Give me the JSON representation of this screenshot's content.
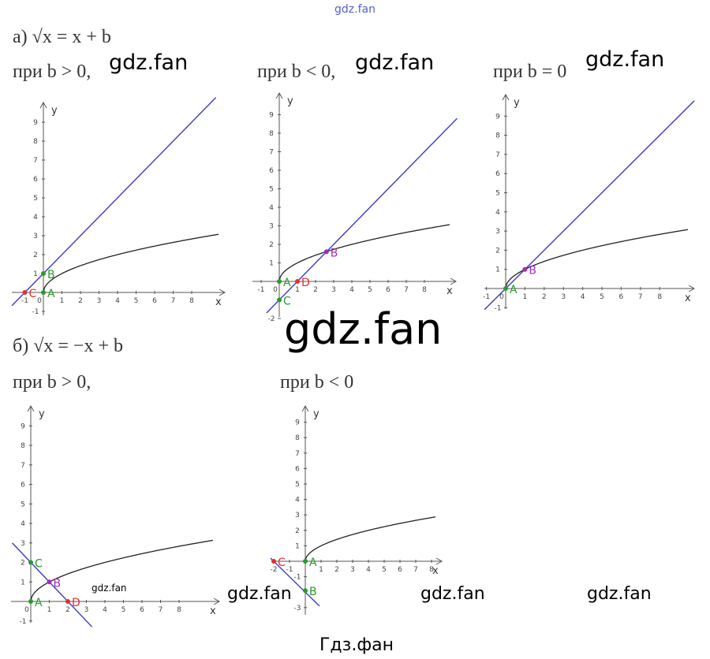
{
  "watermark_top": "gdz.fan",
  "part_a": {
    "heading": "а) √x = x + b",
    "captions": [
      "при b > 0,",
      "при b < 0,",
      "при b = 0"
    ]
  },
  "part_b": {
    "heading": "б) √x = −x + b",
    "captions": [
      "при b > 0,",
      "при b < 0"
    ]
  },
  "watermarks": [
    "gdz.fan",
    "gdz.fan",
    "gdz.fan",
    "gdz.fan",
    "gdz.fan",
    "gdz.fan",
    "gdz.fan",
    "gdz.fan"
  ],
  "footer": "Гдз.фан",
  "graphs": [
    {
      "x_label": "x",
      "y_label": "y",
      "xticks": [
        -1,
        0,
        1,
        2,
        3,
        4,
        5,
        6,
        7,
        8
      ],
      "yticks": [
        -1,
        1,
        2,
        3,
        4,
        5,
        6,
        7,
        8,
        9
      ],
      "points": [
        "C",
        "A",
        "B"
      ]
    },
    {
      "x_label": "x",
      "y_label": "y",
      "xticks": [
        -1,
        0,
        1,
        2,
        3,
        4,
        5,
        6,
        7,
        8
      ],
      "yticks": [
        -2,
        1,
        2,
        3,
        4,
        5,
        6,
        7,
        8,
        9
      ],
      "points": [
        "A",
        "C",
        "D",
        "B"
      ]
    },
    {
      "x_label": "x",
      "y_label": "y",
      "xticks": [
        -1,
        0,
        1,
        2,
        3,
        4,
        5,
        6,
        7,
        8
      ],
      "yticks": [
        -1,
        1,
        2,
        3,
        4,
        5,
        6,
        7,
        8,
        9
      ],
      "points": [
        "A",
        "B"
      ]
    },
    {
      "x_label": "x",
      "y_label": "y",
      "xticks": [
        0,
        1,
        2,
        3,
        4,
        5,
        6,
        7,
        8
      ],
      "yticks": [
        -1,
        1,
        2,
        3,
        4,
        5,
        6,
        7,
        8,
        9
      ],
      "points": [
        "C",
        "A",
        "B",
        "D"
      ]
    },
    {
      "x_label": "x",
      "y_label": "y",
      "xticks": [
        -2,
        -1,
        1,
        2,
        3,
        4,
        5,
        6,
        7,
        8
      ],
      "yticks": [
        -3,
        -1,
        1,
        2,
        3,
        4,
        5,
        6,
        7,
        8,
        9
      ],
      "points": [
        "C",
        "A",
        "B"
      ]
    }
  ]
}
